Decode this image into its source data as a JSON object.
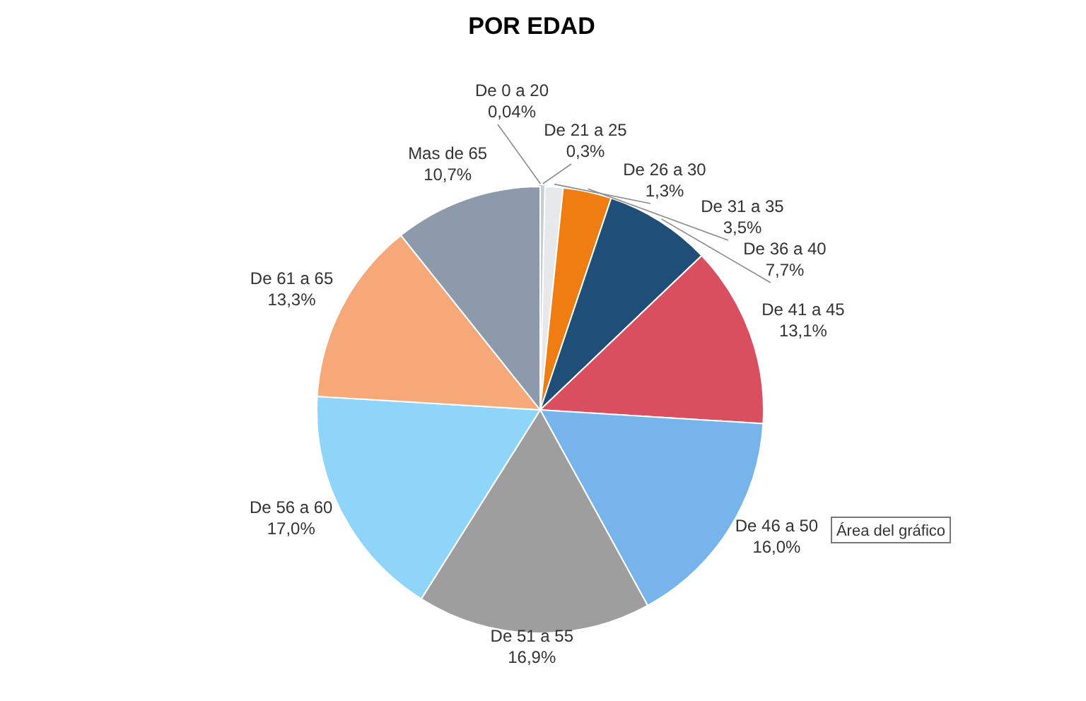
{
  "chart_data": {
    "type": "pie",
    "title": "POR EDAD",
    "categories": [
      "De 0 a 20",
      "De 21 a 25",
      "De 26 a 30",
      "De 31 a 35",
      "De 36 a 40",
      "De 41 a 45",
      "De 46 a 50",
      "De 51 a 55",
      "De 56 a 60",
      "De 61 a 65",
      "Mas de 65"
    ],
    "values": [
      0.04,
      0.3,
      1.3,
      3.5,
      7.7,
      13.1,
      16.0,
      16.9,
      17.0,
      13.3,
      10.7
    ],
    "value_labels": [
      "0,04%",
      "0,3%",
      "1,3%",
      "3,5%",
      "7,7%",
      "13,1%",
      "16,0%",
      "16,9%",
      "17,0%",
      "13,3%",
      "10,7%"
    ],
    "colors": [
      "#3e6a9e",
      "#c8ccd4",
      "#e6e8ea",
      "#f07d12",
      "#1f4e79",
      "#d94f5f",
      "#78b4ec",
      "#9e9e9e",
      "#8fd5fa",
      "#f7a878",
      "#8c9aab"
    ],
    "annotations": [
      "Área del gráfico"
    ]
  }
}
